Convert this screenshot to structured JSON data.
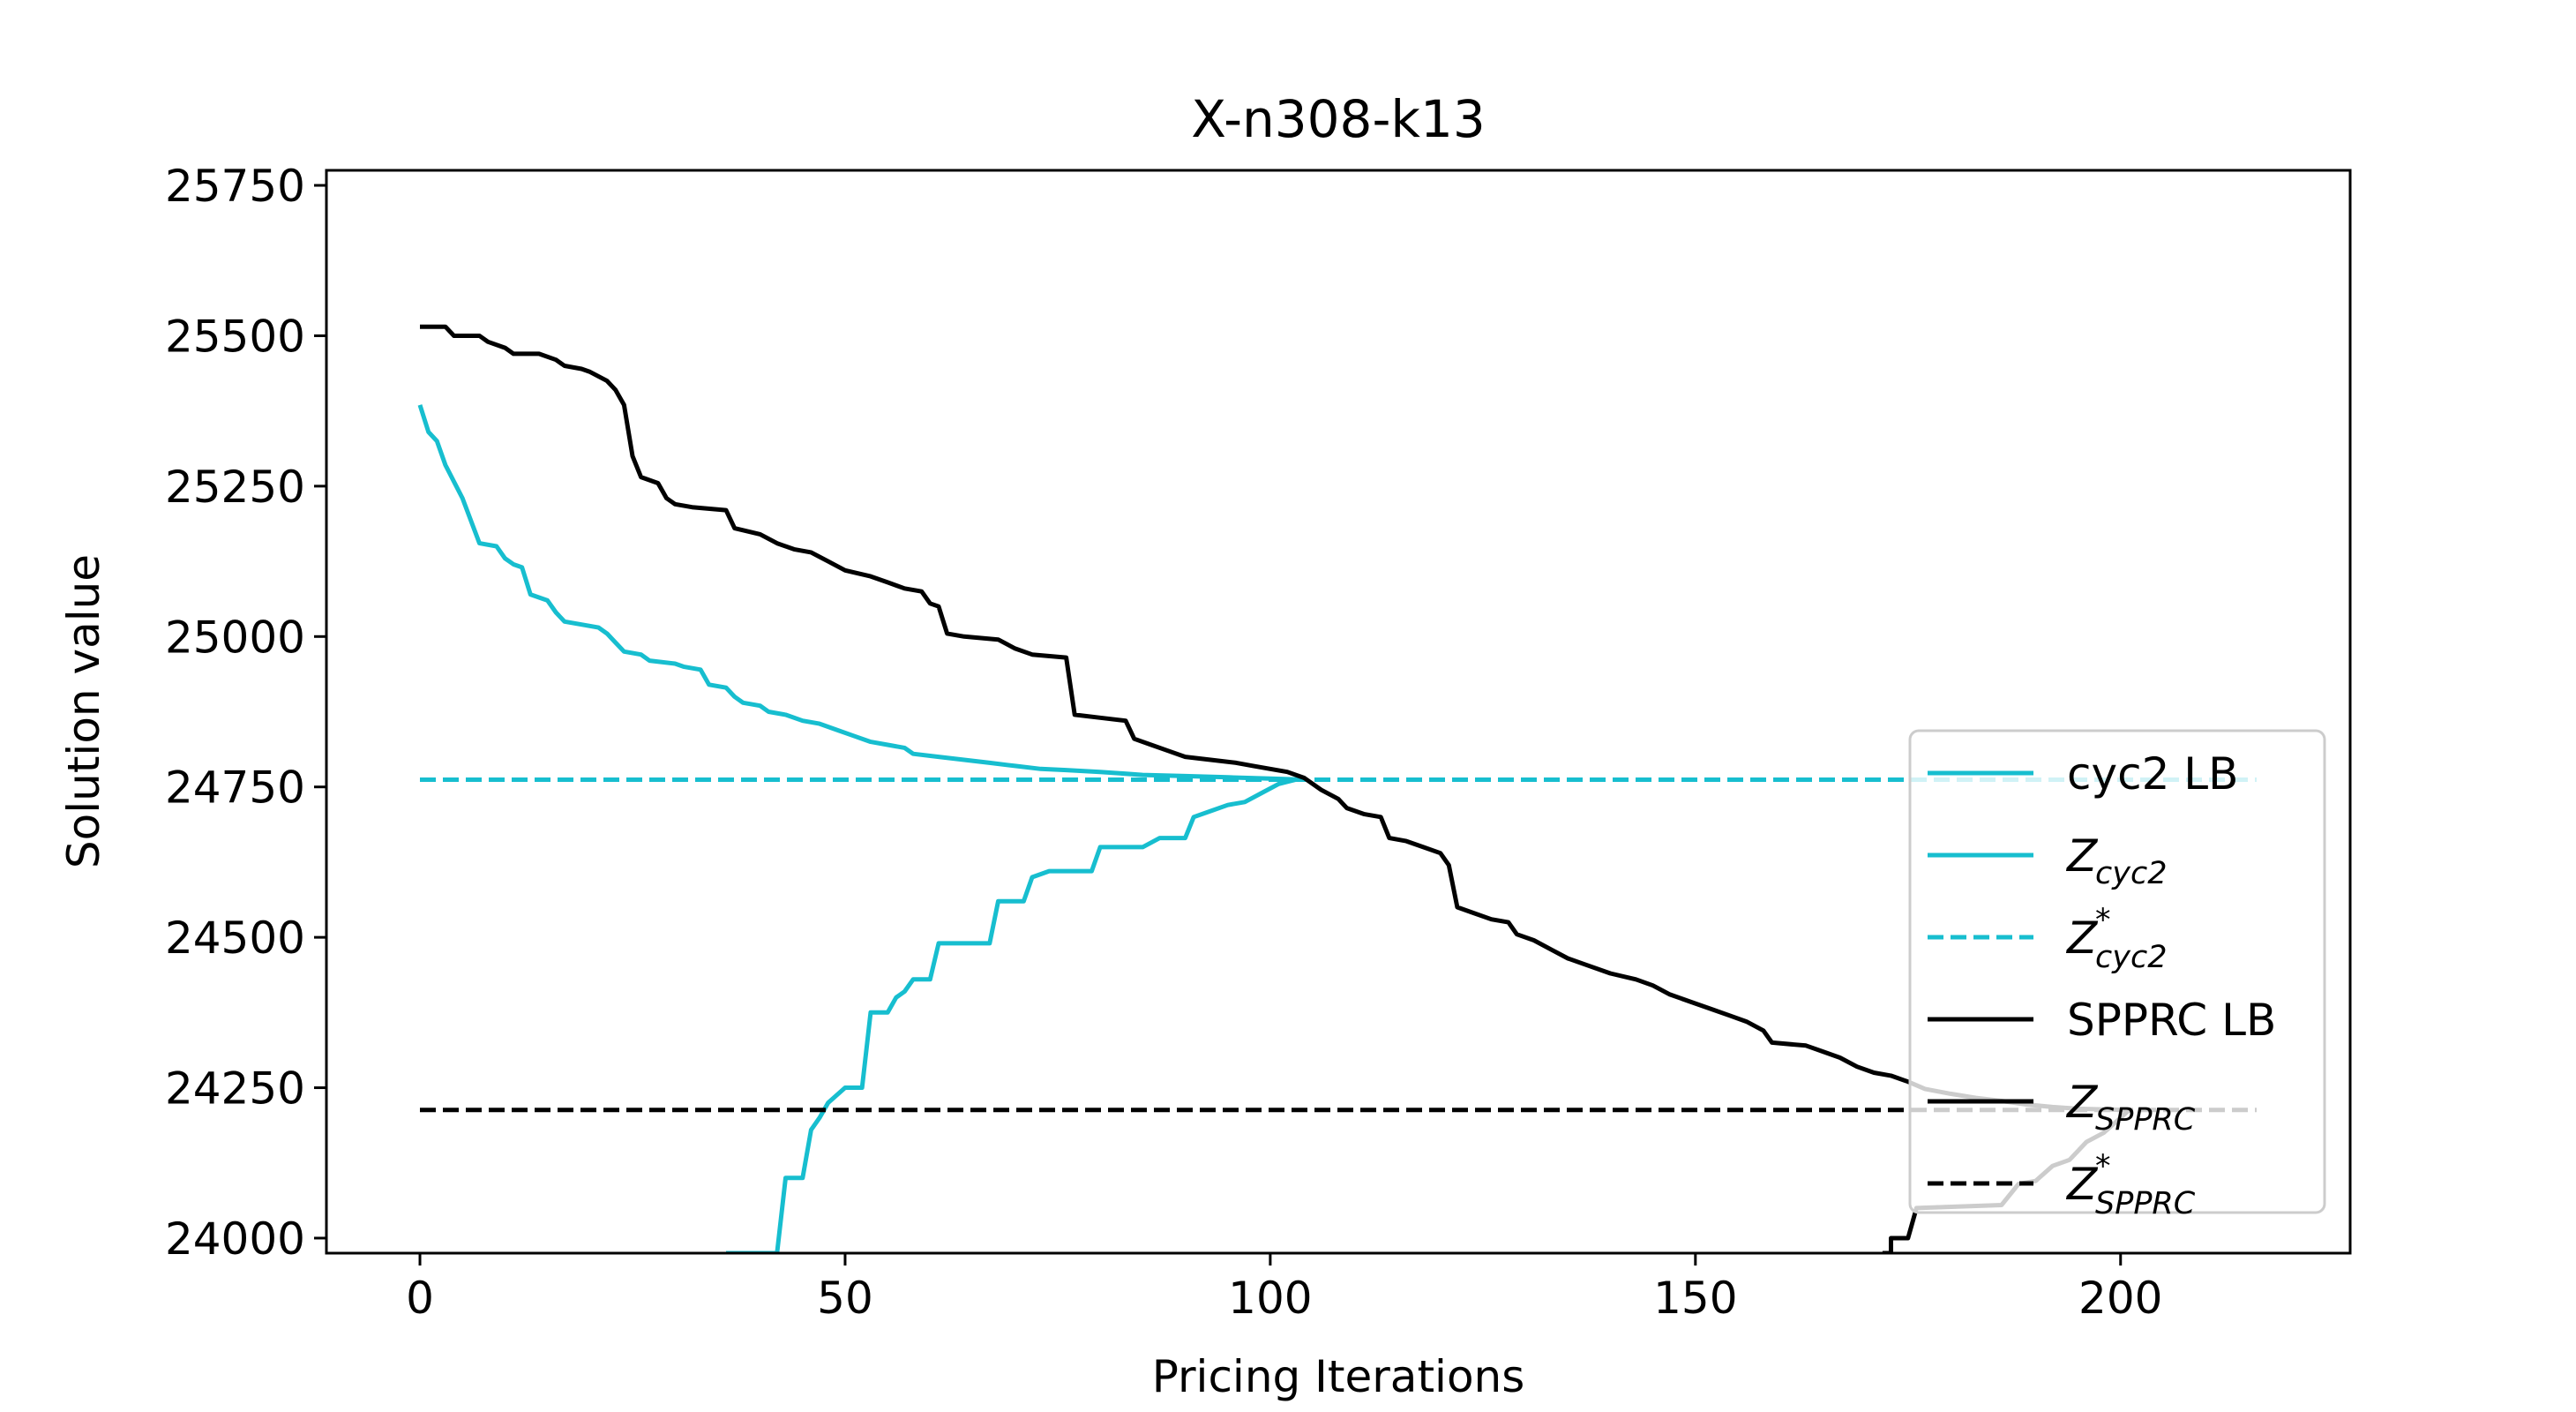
{
  "chart_data": {
    "type": "line",
    "title": "X-n308-k13",
    "xlabel": "Pricing Iterations",
    "ylabel": "Solution value",
    "xlim": [
      -11,
      227
    ],
    "ylim": [
      23975,
      25775
    ],
    "xticks": [
      0,
      50,
      100,
      150,
      200
    ],
    "yticks": [
      24000,
      24250,
      24500,
      24750,
      25000,
      25250,
      25500,
      25750
    ],
    "xtick_labels": [
      "0",
      "50",
      "100",
      "150",
      "200"
    ],
    "ytick_labels": [
      "24000",
      "24250",
      "24500",
      "24750",
      "25000",
      "25250",
      "25500",
      "25750"
    ],
    "grid": false,
    "legend_position": "right",
    "series": [
      {
        "name": "cyc2 LB",
        "color": "#17becf",
        "style": "solid",
        "points": [
          [
            0,
            25385
          ],
          [
            1,
            25340
          ],
          [
            2,
            25325
          ],
          [
            3,
            25285
          ],
          [
            5,
            25230
          ],
          [
            7,
            25155
          ],
          [
            9,
            25150
          ],
          [
            10,
            25130
          ],
          [
            11,
            25120
          ],
          [
            12,
            25115
          ],
          [
            13,
            25070
          ],
          [
            15,
            25060
          ],
          [
            16,
            25040
          ],
          [
            17,
            25025
          ],
          [
            19,
            25020
          ],
          [
            21,
            25015
          ],
          [
            22,
            25005
          ],
          [
            23,
            24990
          ],
          [
            24,
            24975
          ],
          [
            26,
            24970
          ],
          [
            27,
            24960
          ],
          [
            30,
            24955
          ],
          [
            31,
            24950
          ],
          [
            33,
            24945
          ],
          [
            34,
            24920
          ],
          [
            36,
            24915
          ],
          [
            37,
            24900
          ],
          [
            38,
            24890
          ],
          [
            40,
            24885
          ],
          [
            41,
            24875
          ],
          [
            43,
            24870
          ],
          [
            45,
            24860
          ],
          [
            47,
            24855
          ],
          [
            49,
            24845
          ],
          [
            51,
            24835
          ],
          [
            53,
            24825
          ],
          [
            55,
            24820
          ],
          [
            57,
            24815
          ],
          [
            58,
            24805
          ],
          [
            61,
            24800
          ],
          [
            64,
            24795
          ],
          [
            67,
            24790
          ],
          [
            70,
            24785
          ],
          [
            73,
            24780
          ],
          [
            76,
            24778
          ],
          [
            80,
            24775
          ],
          [
            85,
            24770
          ],
          [
            90,
            24768
          ],
          [
            95,
            24766
          ],
          [
            100,
            24764
          ],
          [
            104,
            24762
          ]
        ]
      },
      {
        "name": "Z_cyc2",
        "color": "#17becf",
        "style": "solid",
        "points": [
          [
            36,
            23975
          ],
          [
            42,
            23975
          ],
          [
            43,
            24100
          ],
          [
            45,
            24100
          ],
          [
            46,
            24180
          ],
          [
            47,
            24200
          ],
          [
            48,
            24225
          ],
          [
            50,
            24250
          ],
          [
            52,
            24250
          ],
          [
            53,
            24375
          ],
          [
            55,
            24375
          ],
          [
            56,
            24400
          ],
          [
            57,
            24410
          ],
          [
            58,
            24430
          ],
          [
            60,
            24430
          ],
          [
            61,
            24490
          ],
          [
            67,
            24490
          ],
          [
            68,
            24560
          ],
          [
            71,
            24560
          ],
          [
            72,
            24600
          ],
          [
            74,
            24610
          ],
          [
            79,
            24610
          ],
          [
            80,
            24650
          ],
          [
            85,
            24650
          ],
          [
            87,
            24665
          ],
          [
            90,
            24665
          ],
          [
            91,
            24700
          ],
          [
            93,
            24710
          ],
          [
            95,
            24720
          ],
          [
            97,
            24725
          ],
          [
            99,
            24740
          ],
          [
            101,
            24755
          ],
          [
            103,
            24762
          ]
        ]
      },
      {
        "name": "Z*_cyc2",
        "color": "#17becf",
        "style": "dashed",
        "points": [
          [
            0,
            24762
          ],
          [
            216,
            24762
          ]
        ]
      },
      {
        "name": "SPPRC LB",
        "color": "#000000",
        "style": "solid",
        "points": [
          [
            0,
            25515
          ],
          [
            3,
            25515
          ],
          [
            4,
            25500
          ],
          [
            7,
            25500
          ],
          [
            8,
            25490
          ],
          [
            10,
            25480
          ],
          [
            11,
            25470
          ],
          [
            14,
            25470
          ],
          [
            16,
            25460
          ],
          [
            17,
            25450
          ],
          [
            19,
            25445
          ],
          [
            20,
            25440
          ],
          [
            22,
            25425
          ],
          [
            23,
            25410
          ],
          [
            24,
            25385
          ],
          [
            25,
            25300
          ],
          [
            26,
            25265
          ],
          [
            28,
            25255
          ],
          [
            29,
            25230
          ],
          [
            30,
            25220
          ],
          [
            32,
            25215
          ],
          [
            36,
            25210
          ],
          [
            37,
            25180
          ],
          [
            40,
            25170
          ],
          [
            42,
            25155
          ],
          [
            44,
            25145
          ],
          [
            46,
            25140
          ],
          [
            48,
            25125
          ],
          [
            50,
            25110
          ],
          [
            53,
            25100
          ],
          [
            55,
            25090
          ],
          [
            57,
            25080
          ],
          [
            59,
            25075
          ],
          [
            60,
            25055
          ],
          [
            61,
            25050
          ],
          [
            62,
            25005
          ],
          [
            64,
            25000
          ],
          [
            68,
            24995
          ],
          [
            70,
            24980
          ],
          [
            72,
            24970
          ],
          [
            76,
            24965
          ],
          [
            77,
            24870
          ],
          [
            80,
            24865
          ],
          [
            83,
            24860
          ],
          [
            84,
            24830
          ],
          [
            86,
            24820
          ],
          [
            88,
            24810
          ],
          [
            90,
            24800
          ],
          [
            93,
            24795
          ],
          [
            96,
            24790
          ],
          [
            98,
            24785
          ],
          [
            100,
            24780
          ],
          [
            102,
            24775
          ],
          [
            104,
            24765
          ],
          [
            106,
            24745
          ],
          [
            108,
            24730
          ],
          [
            109,
            24715
          ],
          [
            111,
            24705
          ],
          [
            113,
            24700
          ],
          [
            114,
            24665
          ],
          [
            116,
            24660
          ],
          [
            118,
            24650
          ],
          [
            120,
            24640
          ],
          [
            121,
            24620
          ],
          [
            122,
            24550
          ],
          [
            124,
            24540
          ],
          [
            126,
            24530
          ],
          [
            128,
            24525
          ],
          [
            129,
            24505
          ],
          [
            131,
            24495
          ],
          [
            133,
            24480
          ],
          [
            135,
            24465
          ],
          [
            137,
            24455
          ],
          [
            140,
            24440
          ],
          [
            143,
            24430
          ],
          [
            145,
            24420
          ],
          [
            147,
            24405
          ],
          [
            150,
            24390
          ],
          [
            152,
            24380
          ],
          [
            154,
            24370
          ],
          [
            156,
            24360
          ],
          [
            158,
            24345
          ],
          [
            159,
            24325
          ],
          [
            163,
            24320
          ],
          [
            165,
            24310
          ],
          [
            167,
            24300
          ],
          [
            169,
            24285
          ],
          [
            171,
            24275
          ],
          [
            173,
            24270
          ],
          [
            175,
            24260
          ],
          [
            177,
            24248
          ],
          [
            180,
            24240
          ],
          [
            183,
            24233
          ],
          [
            186,
            24228
          ],
          [
            189,
            24222
          ],
          [
            192,
            24218
          ],
          [
            195,
            24215
          ],
          [
            198,
            24214
          ],
          [
            201,
            24213
          ]
        ]
      },
      {
        "name": "Z_SPPRC",
        "color": "#000000",
        "style": "solid",
        "points": [
          [
            172,
            23975
          ],
          [
            173,
            23975
          ],
          [
            173,
            24000
          ],
          [
            175,
            24000
          ],
          [
            176,
            24050
          ],
          [
            186,
            24055
          ],
          [
            188,
            24090
          ],
          [
            190,
            24095
          ],
          [
            192,
            24120
          ],
          [
            194,
            24130
          ],
          [
            196,
            24160
          ],
          [
            198,
            24175
          ],
          [
            200,
            24200
          ],
          [
            201,
            24213
          ]
        ]
      },
      {
        "name": "Z*_SPPRC",
        "color": "#000000",
        "style": "dashed",
        "points": [
          [
            0,
            24213
          ],
          [
            216,
            24213
          ]
        ]
      }
    ],
    "legend": [
      {
        "base": "cyc2 LB",
        "sub": "",
        "sup": "",
        "color": "#17becf",
        "style": "solid"
      },
      {
        "base": "Z",
        "sub": "cyc2",
        "sup": "",
        "color": "#17becf",
        "style": "solid"
      },
      {
        "base": "Z",
        "sub": "cyc2",
        "sup": "*",
        "color": "#17becf",
        "style": "dashed"
      },
      {
        "base": "SPPRC LB",
        "sub": "",
        "sup": "",
        "color": "#000000",
        "style": "solid"
      },
      {
        "base": "Z",
        "sub": "SPPRC",
        "sup": "",
        "color": "#000000",
        "style": "solid"
      },
      {
        "base": "Z",
        "sub": "SPPRC",
        "sup": "*",
        "color": "#000000",
        "style": "dashed"
      }
    ]
  }
}
